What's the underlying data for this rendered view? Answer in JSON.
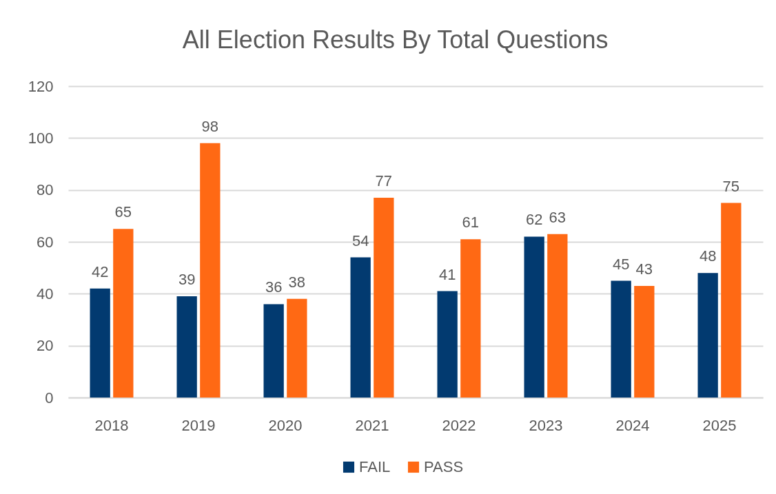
{
  "chart_data": {
    "type": "bar",
    "title": "All Election Results By Total Questions",
    "categories": [
      "2018",
      "2019",
      "2020",
      "2021",
      "2022",
      "2023",
      "2024",
      "2025"
    ],
    "series": [
      {
        "name": "FAIL",
        "color": "#023a70",
        "values": [
          42,
          39,
          36,
          54,
          41,
          62,
          45,
          48
        ]
      },
      {
        "name": "PASS",
        "color": "#ff6914",
        "values": [
          65,
          98,
          38,
          77,
          61,
          63,
          43,
          75
        ]
      }
    ],
    "ylim": [
      0,
      120
    ],
    "yticks": [
      0,
      20,
      40,
      60,
      80,
      100,
      120
    ],
    "grid": "y",
    "legend": "bottom",
    "data_labels": true
  }
}
